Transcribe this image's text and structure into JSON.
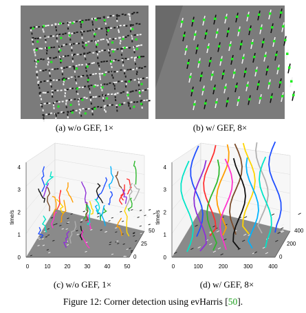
{
  "panels": {
    "a": {
      "caption": "(a) w/o GEF, 1×"
    },
    "b": {
      "caption": "(b) w/ GEF, 8×"
    },
    "c": {
      "caption": "(c) w/o GEF, 1×",
      "z_axis_label": "time/s",
      "z_ticks": [
        "0",
        "1",
        "2",
        "3",
        "4"
      ],
      "x_ticks": [
        "0",
        "10",
        "20",
        "30",
        "40",
        "50"
      ],
      "y_ticks": [
        "0",
        "25",
        "50"
      ]
    },
    "d": {
      "caption": "(d) w/ GEF, 8×",
      "z_axis_label": "time/s",
      "z_ticks": [
        "0",
        "1",
        "2",
        "3",
        "4"
      ],
      "x_ticks": [
        "0",
        "100",
        "200",
        "300",
        "400"
      ],
      "y_ticks": [
        "0",
        "200",
        "400"
      ]
    }
  },
  "figure": {
    "caption_prefix": "Figure 12: Corner detection using evHarris [",
    "caption_ref": "50",
    "caption_suffix": "]."
  },
  "colors": {
    "ref_link": "#1a9e1a",
    "corner_marker": "#22ee22",
    "image_background": "#7b7b7b"
  }
}
